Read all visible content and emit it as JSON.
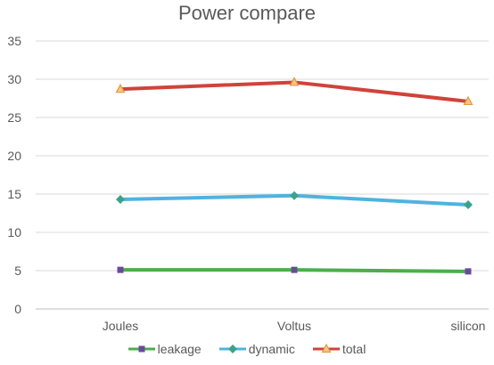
{
  "chart_data": {
    "type": "line",
    "title": "Power compare",
    "xlabel": "",
    "ylabel": "",
    "categories": [
      "Joules",
      "Voltus",
      "silicon"
    ],
    "ylim": [
      0,
      35
    ],
    "yticks": [
      0,
      5,
      10,
      15,
      20,
      25,
      30,
      35
    ],
    "grid": true,
    "legend_position": "bottom",
    "series": [
      {
        "name": "leakage",
        "values": [
          5.1,
          5.1,
          4.9
        ],
        "color": "#4cae4c",
        "marker": "square",
        "marker_color": "#6a4a9c"
      },
      {
        "name": "dynamic",
        "values": [
          14.3,
          14.8,
          13.6
        ],
        "color": "#4fb3df",
        "marker": "diamond",
        "marker_color": "#3aa38a"
      },
      {
        "name": "total",
        "values": [
          28.7,
          29.6,
          27.1
        ],
        "color": "#d0433a",
        "marker": "triangle",
        "marker_color": "#e39a3f"
      }
    ]
  }
}
